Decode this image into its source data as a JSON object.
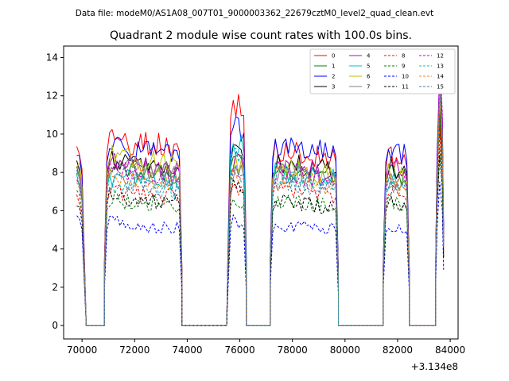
{
  "chart_data": {
    "type": "line",
    "suptitle": "Data file: modeM0/AS1A08_007T01_9000003362_22679cztM0_level2_quad_clean.evt",
    "title": "Quadrant 2 module wise count rates with 100.0s bins.",
    "xlabel": "",
    "ylabel": "",
    "x_offset_label": "+3.134e8",
    "x_offset": 313400000,
    "xlim": [
      69300,
      84300
    ],
    "ylim": [
      -0.7,
      14.6
    ],
    "x_ticks": [
      70000,
      72000,
      74000,
      76000,
      78000,
      80000,
      82000,
      84000
    ],
    "x_tick_labels": [
      "70000",
      "72000",
      "74000",
      "76000",
      "78000",
      "80000",
      "82000",
      "84000"
    ],
    "y_ticks": [
      0,
      2,
      4,
      6,
      8,
      10,
      12,
      14
    ],
    "y_tick_labels": [
      "0",
      "2",
      "4",
      "6",
      "8",
      "10",
      "12",
      "14"
    ],
    "grid": false,
    "legend_position": "upper right",
    "legend_columns": 4,
    "bin_size_s": 100,
    "segments": [
      {
        "start": 69800,
        "end": 70150,
        "shape": "dip"
      },
      {
        "start": 70150,
        "end": 70450,
        "shape": "zero"
      },
      {
        "start": 70450,
        "end": 70850,
        "shape": "zero"
      },
      {
        "start": 70850,
        "end": 73800,
        "shape": "plateau"
      },
      {
        "start": 73800,
        "end": 75550,
        "shape": "zero"
      },
      {
        "start": 75550,
        "end": 76250,
        "shape": "plateau"
      },
      {
        "start": 76250,
        "end": 76850,
        "shape": "zero"
      },
      {
        "start": 76850,
        "end": 77150,
        "shape": "zero"
      },
      {
        "start": 77150,
        "end": 79750,
        "shape": "plateau"
      },
      {
        "start": 79750,
        "end": 81450,
        "shape": "zero"
      },
      {
        "start": 81450,
        "end": 82450,
        "shape": "plateau"
      },
      {
        "start": 82450,
        "end": 83450,
        "shape": "zero"
      },
      {
        "start": 83450,
        "end": 83750,
        "shape": "spike"
      }
    ],
    "series": [
      {
        "name": "0",
        "color": "#ff0000",
        "dash": "solid",
        "levels": [
          9.6,
          9.8,
          11.8,
          9.2,
          8.9,
          10.5
        ]
      },
      {
        "name": "1",
        "color": "#008000",
        "dash": "solid",
        "levels": [
          8.0,
          8.3,
          9.0,
          8.2,
          8.1,
          11.0
        ]
      },
      {
        "name": "2",
        "color": "#0000ff",
        "dash": "solid",
        "levels": [
          9.2,
          9.3,
          10.8,
          9.5,
          9.3,
          13.3
        ]
      },
      {
        "name": "3",
        "color": "#000000",
        "dash": "solid",
        "levels": [
          8.6,
          8.7,
          9.2,
          8.6,
          8.5,
          11.5
        ]
      },
      {
        "name": "4",
        "color": "#bf00bf",
        "dash": "solid",
        "levels": [
          8.3,
          8.6,
          8.7,
          8.4,
          8.4,
          13.5
        ]
      },
      {
        "name": "5",
        "color": "#00bfbf",
        "dash": "solid",
        "levels": [
          7.9,
          7.8,
          9.7,
          8.1,
          7.7,
          12.5
        ]
      },
      {
        "name": "6",
        "color": "#bfbf00",
        "dash": "solid",
        "levels": [
          8.5,
          8.9,
          8.6,
          8.3,
          8.1,
          11.8
        ]
      },
      {
        "name": "7",
        "color": "#808080",
        "dash": "solid",
        "levels": [
          8.1,
          8.4,
          8.3,
          8.0,
          7.9,
          12.2
        ]
      },
      {
        "name": "8",
        "color": "#ff0000",
        "dash": "dashed",
        "levels": [
          6.8,
          7.1,
          7.4,
          7.2,
          7.0,
          10.0
        ]
      },
      {
        "name": "9",
        "color": "#008000",
        "dash": "dashed",
        "levels": [
          6.9,
          6.6,
          6.8,
          6.6,
          6.5,
          9.3
        ]
      },
      {
        "name": "10",
        "color": "#0000ff",
        "dash": "dashed",
        "levels": [
          5.9,
          5.4,
          5.5,
          5.3,
          5.3,
          7.5
        ]
      },
      {
        "name": "11",
        "color": "#000000",
        "dash": "dashed",
        "levels": [
          6.4,
          6.8,
          7.5,
          6.5,
          6.5,
          8.9
        ]
      },
      {
        "name": "12",
        "color": "#bf00bf",
        "dash": "dashed",
        "levels": [
          7.8,
          8.1,
          8.5,
          8.0,
          7.8,
          13.9
        ]
      },
      {
        "name": "13",
        "color": "#00bfbf",
        "dash": "dashed",
        "levels": [
          7.6,
          7.5,
          9.3,
          7.8,
          7.6,
          12.3
        ]
      },
      {
        "name": "14",
        "color": "#ff7f0e",
        "dash": "dashed",
        "levels": [
          7.5,
          7.9,
          8.2,
          7.7,
          7.5,
          12.4
        ]
      },
      {
        "name": "15",
        "color": "#4682b4",
        "dash": "dashed",
        "levels": [
          7.7,
          7.6,
          8.1,
          7.6,
          7.4,
          12.6
        ]
      }
    ]
  }
}
